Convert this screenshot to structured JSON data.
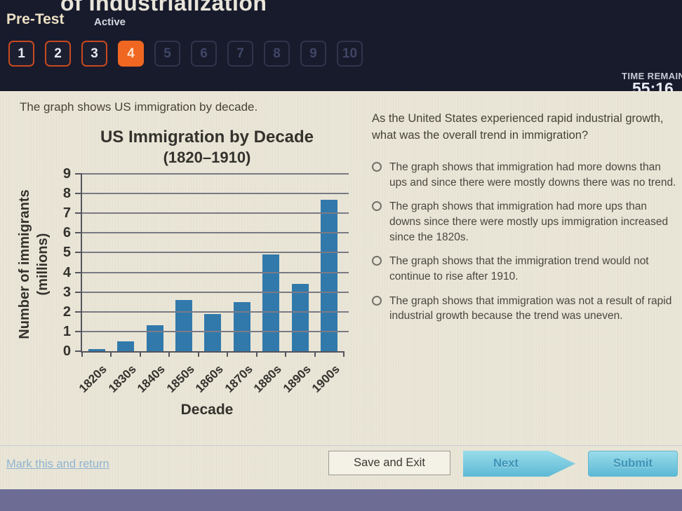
{
  "header": {
    "unit_title": "of Industrialization",
    "test_label": "Pre-Test",
    "status": "Active",
    "timer_label": "TIME REMAINING",
    "timer_value": "55:16",
    "questions": [
      {
        "label": "1",
        "state": "answered"
      },
      {
        "label": "2",
        "state": "answered"
      },
      {
        "label": "3",
        "state": "answered"
      },
      {
        "label": "4",
        "state": "current"
      },
      {
        "label": "5",
        "state": "unanswered"
      },
      {
        "label": "6",
        "state": "unanswered"
      },
      {
        "label": "7",
        "state": "unanswered"
      },
      {
        "label": "8",
        "state": "unanswered"
      },
      {
        "label": "9",
        "state": "unanswered"
      },
      {
        "label": "10",
        "state": "unanswered"
      }
    ]
  },
  "main": {
    "prompt": "The graph shows US immigration by decade.",
    "question": "As the United States experienced rapid industrial growth, what was the overall trend in immigration?",
    "options": [
      {
        "text": "The graph shows that immigration had more downs than ups and since there were mostly downs there was no trend.",
        "selected": false
      },
      {
        "text": "The graph shows that immigration had more ups than downs since there were mostly ups immigration increased since the 1820s.",
        "selected": false
      },
      {
        "text": "The graph shows that the immigration trend would not continue to rise after 1910.",
        "selected": false
      },
      {
        "text": "The graph shows that immigration was not a result of rapid industrial growth because the trend was uneven.",
        "selected": false
      }
    ]
  },
  "chart_data": {
    "type": "bar",
    "title": "US Immigration by Decade",
    "subtitle": "(1820–1910)",
    "categories": [
      "1820s",
      "1830s",
      "1840s",
      "1850s",
      "1860s",
      "1870s",
      "1880s",
      "1890s",
      "1900s"
    ],
    "values": [
      0.1,
      0.5,
      1.3,
      2.6,
      1.9,
      2.5,
      4.9,
      3.4,
      7.7
    ],
    "xlabel": "Decade",
    "ylabel": "Number of immigrants (millions)",
    "ylabel_lines": [
      "Number of immigrants",
      "(millions)"
    ],
    "ylim": [
      0,
      9
    ],
    "ytick_step": 1,
    "grid": true,
    "legend": false,
    "bar_color": "#3179ab"
  },
  "footer": {
    "mark_link": "Mark this and return",
    "save_exit": "Save and Exit",
    "next": "Next",
    "submit": "Submit"
  },
  "colors": {
    "accent_orange": "#f06722",
    "answered_border": "#c8491f",
    "bar_blue": "#3179ab",
    "button_blue": "#5cb9d5",
    "panel_cream": "#eae6d7",
    "header_dark": "#181b2c",
    "desktop_strip": "#6c6c95"
  }
}
